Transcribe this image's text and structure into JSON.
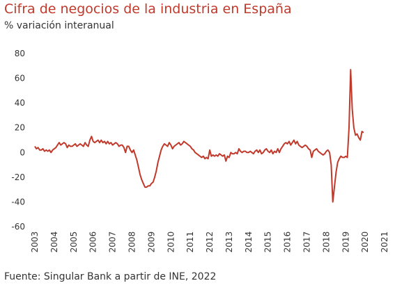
{
  "chart_data": {
    "type": "line",
    "title": "Cifra de negocios de la industria en España",
    "subtitle": "% variación interanual",
    "source": "Fuente: Singular Bank a partir de INE, 2022",
    "ylim": [
      -60,
      80
    ],
    "y_ticks": [
      "80",
      "60",
      "40",
      "20",
      "0",
      "-20",
      "-40",
      "-60"
    ],
    "x_ticks": [
      "2003",
      "2004",
      "2005",
      "2006",
      "2007",
      "2008",
      "2009",
      "2010",
      "2011",
      "2012",
      "2013",
      "2014",
      "2015",
      "2016",
      "2017",
      "2018",
      "2019",
      "2020",
      "2021"
    ],
    "grid": false,
    "line_color": "#c0392b",
    "series": [
      {
        "x_start": "2003-01",
        "frequency": "monthly",
        "values": [
          5,
          3,
          4,
          2,
          2,
          3,
          1,
          2,
          1,
          2,
          0,
          2,
          3,
          4,
          6,
          8,
          6,
          7,
          8,
          7,
          4,
          6,
          5,
          5,
          6,
          7,
          5,
          6,
          7,
          6,
          5,
          8,
          6,
          5,
          10,
          13,
          9,
          8,
          9,
          10,
          8,
          10,
          8,
          9,
          7,
          9,
          7,
          8,
          6,
          7,
          8,
          7,
          5,
          6,
          6,
          4,
          0,
          5,
          5,
          2,
          0,
          2,
          -2,
          -6,
          -12,
          -18,
          -22,
          -25,
          -28,
          -28,
          -27,
          -27,
          -25,
          -24,
          -20,
          -15,
          -8,
          -3,
          2,
          5,
          7,
          6,
          5,
          8,
          6,
          3,
          5,
          6,
          7,
          8,
          6,
          7,
          9,
          8,
          7,
          6,
          5,
          3,
          2,
          0,
          -1,
          -2,
          -3,
          -4,
          -3,
          -5,
          -4,
          -5,
          2,
          -3,
          -2,
          -3,
          -2,
          -3,
          -1,
          -2,
          -3,
          -2,
          -7,
          -3,
          -4,
          0,
          -1,
          -1,
          0,
          -1,
          3,
          1,
          0,
          1,
          1,
          0,
          0,
          1,
          0,
          -1,
          1,
          2,
          0,
          2,
          -1,
          0,
          2,
          3,
          1,
          0,
          2,
          -1,
          1,
          0,
          3,
          0,
          3,
          5,
          7,
          8,
          7,
          9,
          6,
          8,
          10,
          7,
          9,
          6,
          5,
          4,
          5,
          6,
          5,
          3,
          2,
          -4,
          1,
          2,
          3,
          1,
          0,
          -1,
          -2,
          -1,
          1,
          2,
          0,
          -10,
          -40,
          -28,
          -16,
          -8,
          -5,
          -3,
          -4,
          -4,
          -3,
          -4,
          20,
          67,
          35,
          20,
          14,
          15,
          12,
          10,
          17,
          16
        ]
      }
    ]
  }
}
